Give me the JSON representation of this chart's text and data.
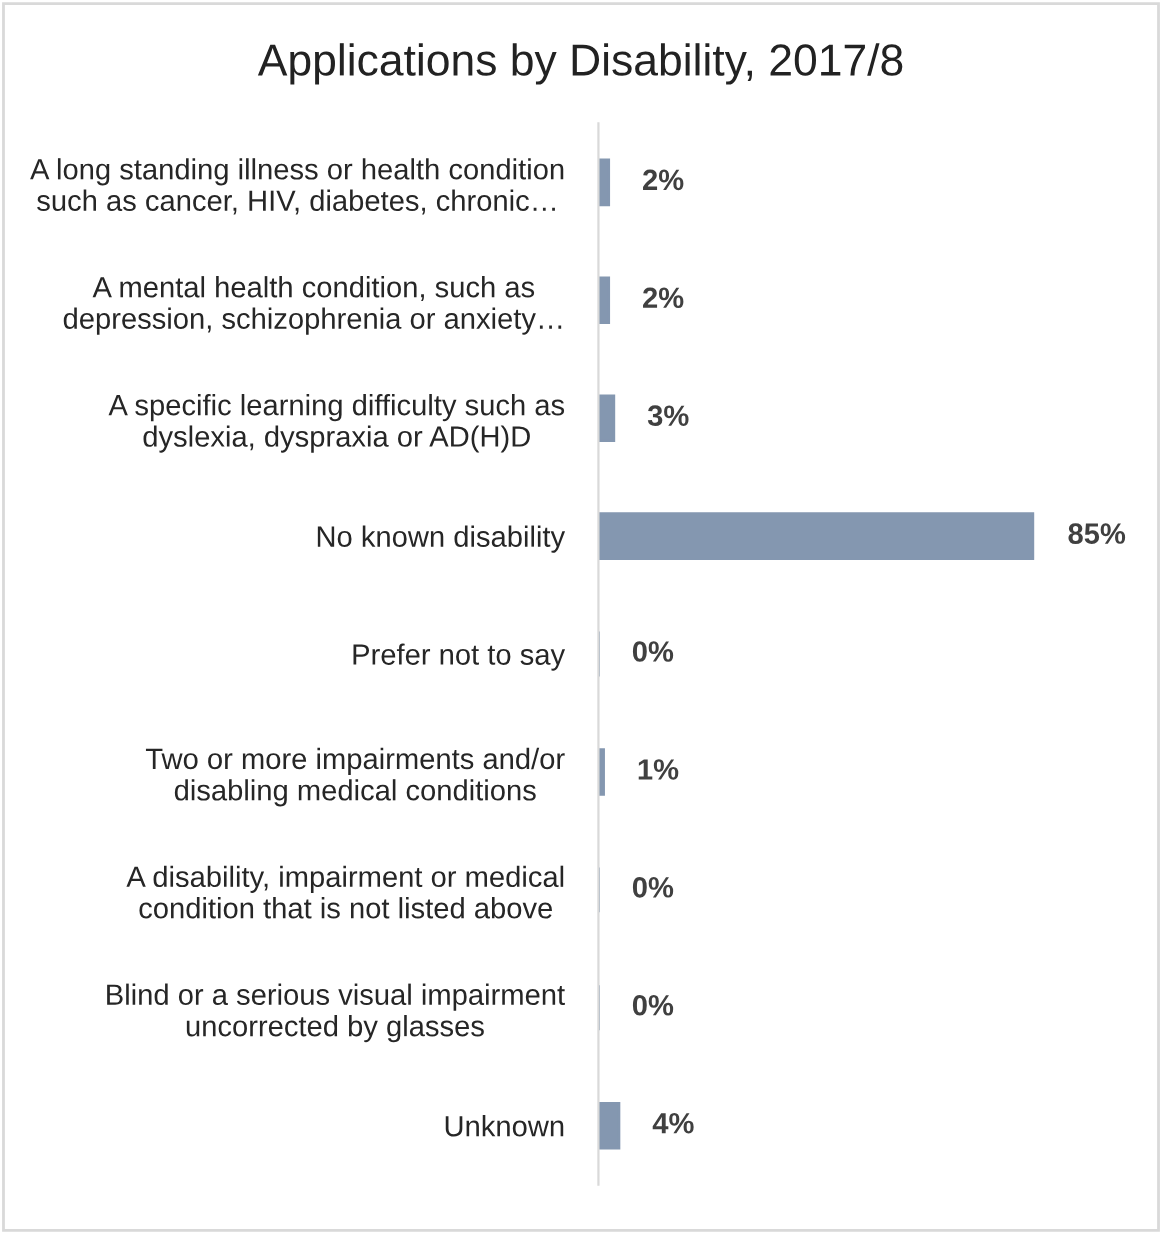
{
  "chart_data": {
    "type": "bar",
    "orientation": "horizontal",
    "title": "Applications by Disability, 2017/8",
    "categories": [
      "A long standing illness or health condition\nsuch as cancer, HIV, diabetes, chronic…",
      "A mental health condition, such as\ndepression, schizophrenia or anxiety…",
      "A specific learning difficulty such as\ndyslexia, dyspraxia or AD(H)D",
      "No known disability",
      "Prefer not to say",
      "Two or more impairments and/or\ndisabling medical conditions",
      "A disability, impairment or medical\ncondition that is not listed above",
      "Blind or a serious visual impairment\nuncorrected by glasses",
      "Unknown"
    ],
    "values": [
      2,
      2,
      3,
      85,
      0,
      1,
      0,
      0,
      4
    ],
    "value_labels": [
      "2%",
      "2%",
      "3%",
      "85%",
      "0%",
      "1%",
      "0%",
      "0%",
      "4%"
    ],
    "color": "#8497b0",
    "grid": false,
    "legend": false
  }
}
